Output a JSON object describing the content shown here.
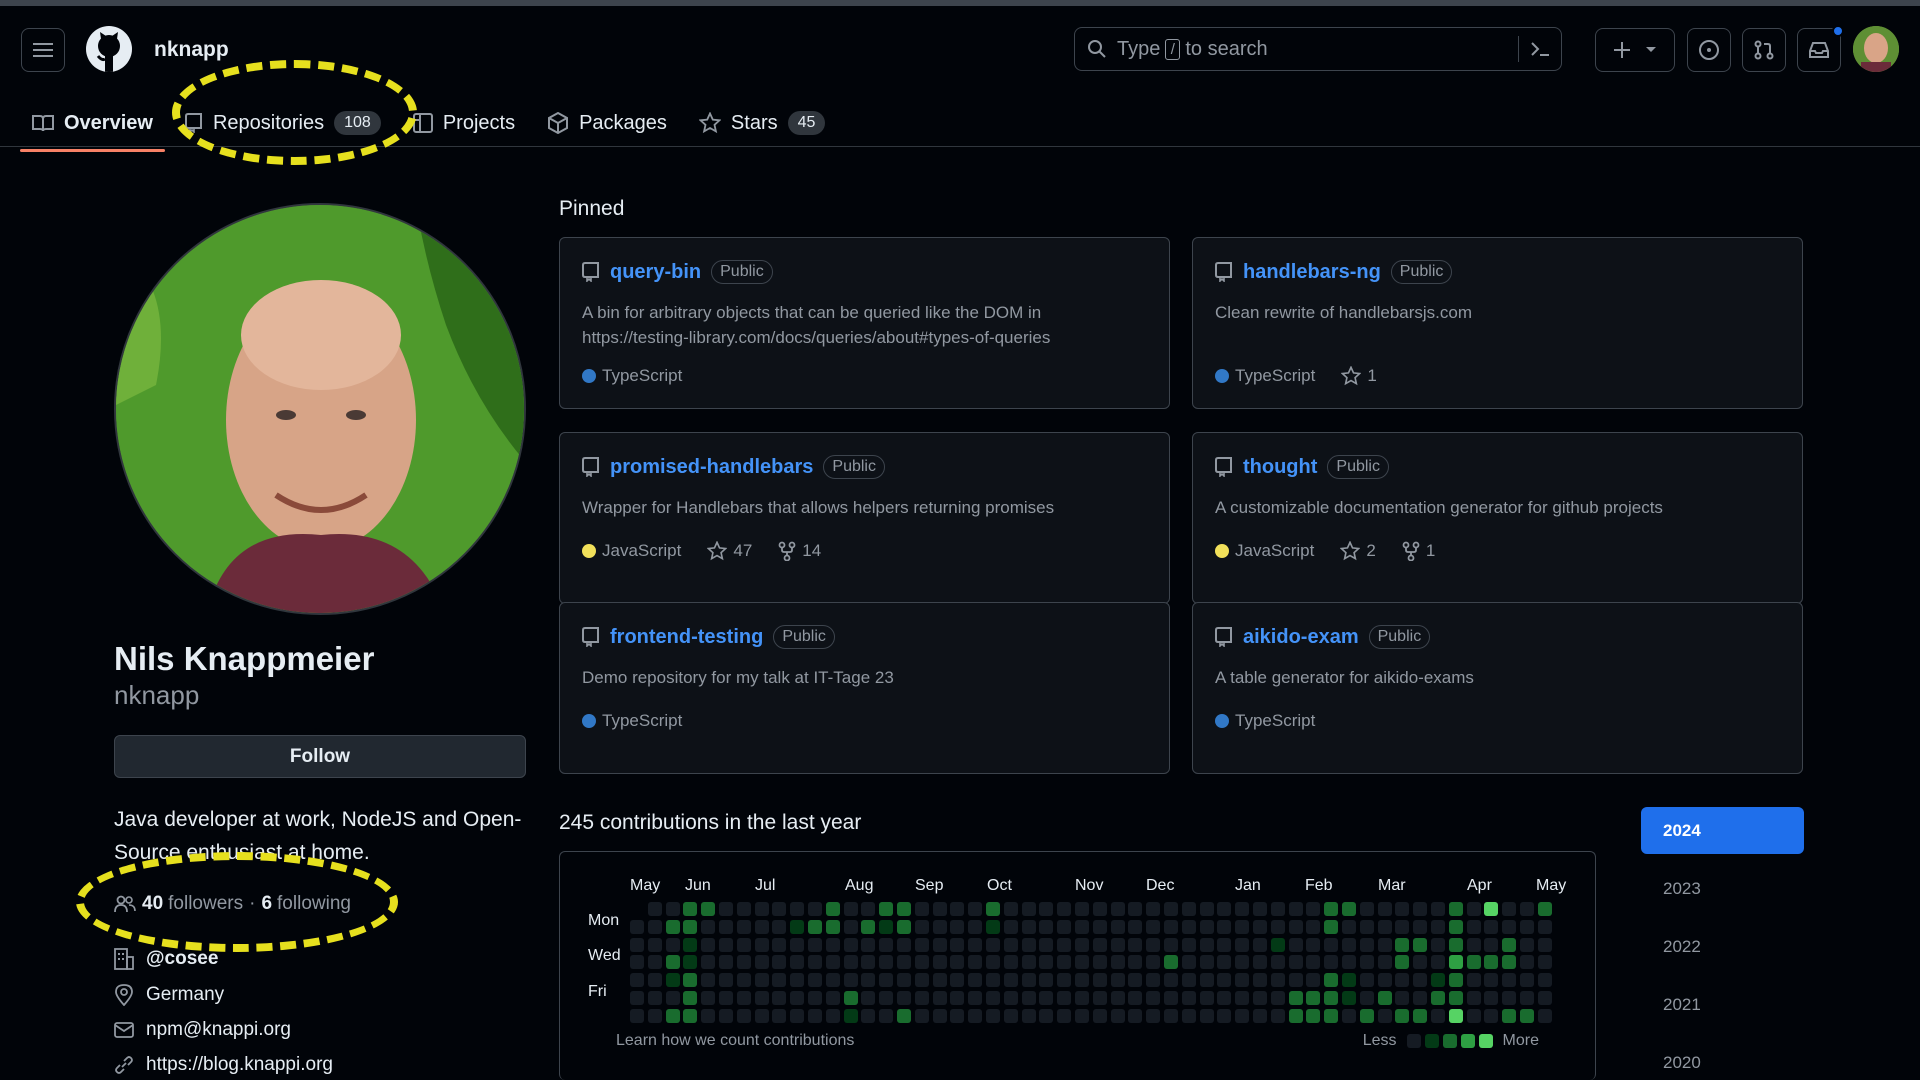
{
  "header": {
    "username": "nknapp",
    "search": {
      "prefix": "Type",
      "key": "/",
      "suffix": "to search"
    }
  },
  "tabs": [
    {
      "label": "Overview",
      "icon": "book-icon",
      "active": true
    },
    {
      "label": "Repositories",
      "icon": "repo-icon",
      "count": "108"
    },
    {
      "label": "Projects",
      "icon": "table-icon"
    },
    {
      "label": "Packages",
      "icon": "package-icon"
    },
    {
      "label": "Stars",
      "icon": "star-icon",
      "count": "45"
    }
  ],
  "profile": {
    "name": "Nils Knappmeier",
    "login": "nknapp",
    "follow_label": "Follow",
    "bio": "Java developer at work, NodeJS and Open-Source enthusiast at home.",
    "followers_count": "40",
    "followers_label": "followers",
    "dot": "·",
    "following_count": "6",
    "following_label": "following",
    "org": "@cosee",
    "location": "Germany",
    "email": "npm@knappi.org",
    "website": "https://blog.knappi.org"
  },
  "pinned": {
    "title": "Pinned",
    "public_label": "Public",
    "cards": [
      {
        "name": "query-bin",
        "desc": "A bin for arbitrary objects that can be queried like the DOM in https://testing-library.com/docs/queries/about#types-of-queries",
        "lang": "TypeScript",
        "lang_color": "#3178c6",
        "stars": "",
        "forks": ""
      },
      {
        "name": "handlebars-ng",
        "desc": "Clean rewrite of handlebarsjs.com",
        "lang": "TypeScript",
        "lang_color": "#3178c6",
        "stars": "1",
        "forks": ""
      },
      {
        "name": "promised-handlebars",
        "desc": "Wrapper for Handlebars that allows helpers returning promises",
        "lang": "JavaScript",
        "lang_color": "#f1e05a",
        "stars": "47",
        "forks": "14"
      },
      {
        "name": "thought",
        "desc": "A customizable documentation generator for github projects",
        "lang": "JavaScript",
        "lang_color": "#f1e05a",
        "stars": "2",
        "forks": "1"
      },
      {
        "name": "frontend-testing",
        "desc": "Demo repository for my talk at IT-Tage 23",
        "lang": "TypeScript",
        "lang_color": "#3178c6",
        "stars": "",
        "forks": ""
      },
      {
        "name": "aikido-exam",
        "desc": "A table generator for aikido-exams",
        "lang": "TypeScript",
        "lang_color": "#3178c6",
        "stars": "",
        "forks": ""
      }
    ]
  },
  "contributions": {
    "title": "245 contributions in the last year",
    "months": [
      "May",
      "Jun",
      "Jul",
      "Aug",
      "Sep",
      "Oct",
      "Nov",
      "Dec",
      "Jan",
      "Feb",
      "Mar",
      "Apr",
      "May"
    ],
    "days": [
      "Mon",
      "Wed",
      "Fri"
    ],
    "learn": "Learn how we count contributions",
    "less": "Less",
    "more": "More",
    "colors": [
      "#151b23",
      "#033a16",
      "#196c2e",
      "#2ea043",
      "#56d364"
    ]
  },
  "years": [
    "2024",
    "2023",
    "2022",
    "2021",
    "2020"
  ],
  "selected_year": "2024"
}
